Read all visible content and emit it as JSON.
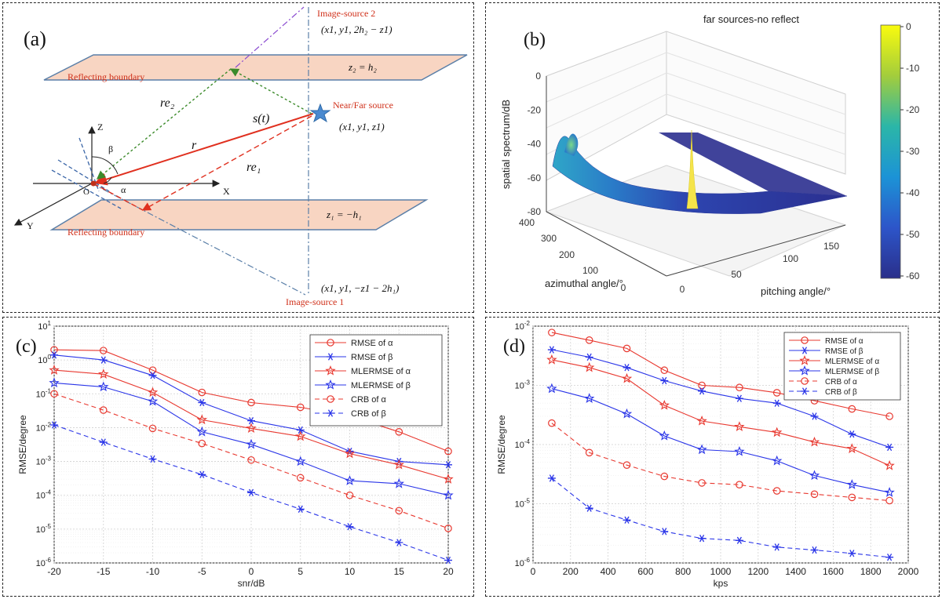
{
  "panel_a": {
    "label": "(a)",
    "image_source_2": "Image-source 2",
    "image_source_2_coords": "(x1, y1, 2h₂ − z1)",
    "image_source_1": "Image-source 1",
    "image_source_1_coords": "(x1, y1, −z1 − 2h₁)",
    "boundary_label": "Reflecting boundary",
    "z2_label": "z₂ = h₂",
    "z1_label": "z₁ = −h₁",
    "source_label": "Near/Far source",
    "source_coords": "(x1, y1, z1)",
    "signal_label": "s(t)",
    "re2_label": "re₂",
    "re1_label": "re₁",
    "r_label": "r",
    "beta_label": "β",
    "alpha_label": "α",
    "origin_label": "O",
    "axis_x": "X",
    "axis_y": "Y",
    "axis_z": "Z"
  },
  "panel_b": {
    "label": "(b)",
    "title": "far sources-no reflect",
    "zlabel": "spatial spectrum/dB",
    "xlabel": "azimuthal angle/°",
    "ylabel": "pitching angle/°",
    "zticks": [
      "0",
      "-20",
      "-40",
      "-60",
      "-80"
    ],
    "xticks": [
      "0",
      "100",
      "200",
      "300",
      "400"
    ],
    "yticks": [
      "0",
      "50",
      "100",
      "150"
    ],
    "colorbar_ticks": [
      "0",
      "-10",
      "-20",
      "-30",
      "-40",
      "-50",
      "-60"
    ],
    "colors": {
      "high": "#f9fb0e",
      "low": "#2a2f8a"
    }
  },
  "panel_c_label": "(c)",
  "panel_d_label": "(d)",
  "chart_data": [
    {
      "type": "line",
      "panel": "(c)",
      "xlabel": "snr/dB",
      "ylabel": "RMSE/degree",
      "yscale": "log",
      "xlim": [
        -20,
        20
      ],
      "ylim": [
        1e-06,
        10
      ],
      "x": [
        -20,
        -15,
        -10,
        -5,
        0,
        5,
        10,
        15,
        20
      ],
      "xticks": [
        "-20",
        "-15",
        "-10",
        "-5",
        "0",
        "5",
        "10",
        "15",
        "20"
      ],
      "grid": true,
      "legend_position": "top-right",
      "series": [
        {
          "name": "RMSE of α",
          "color": "#e8382f",
          "marker": "circle",
          "dash": false,
          "values": [
            2.0,
            1.9,
            0.5,
            0.11,
            0.055,
            0.04,
            0.022,
            0.0075,
            0.002
          ]
        },
        {
          "name": "RMSE of β",
          "color": "#2a35e8",
          "marker": "star6",
          "dash": false,
          "values": [
            1.4,
            1.0,
            0.35,
            0.055,
            0.016,
            0.0085,
            0.002,
            0.001,
            0.0008
          ]
        },
        {
          "name": "MLERMSE of α",
          "color": "#e8382f",
          "marker": "pentagram",
          "dash": false,
          "values": [
            0.5,
            0.38,
            0.11,
            0.017,
            0.0095,
            0.0055,
            0.0017,
            0.0008,
            0.0003
          ]
        },
        {
          "name": "MLERMSE of β",
          "color": "#2a35e8",
          "marker": "pentagram",
          "dash": false,
          "values": [
            0.21,
            0.16,
            0.06,
            0.0075,
            0.0032,
            0.001,
            0.00027,
            0.00022,
            0.0001
          ]
        },
        {
          "name": "CRB of α",
          "color": "#e8382f",
          "marker": "circle",
          "dash": true,
          "values": [
            0.1,
            0.033,
            0.0095,
            0.0034,
            0.0011,
            0.00033,
            0.0001,
            3.5e-05,
            1.05e-05
          ]
        },
        {
          "name": "CRB of β",
          "color": "#2a35e8",
          "marker": "star6",
          "dash": true,
          "values": [
            0.012,
            0.0037,
            0.00118,
            0.00041,
            0.00012,
            3.9e-05,
            1.18e-05,
            4e-06,
            1.2e-06
          ]
        }
      ]
    },
    {
      "type": "line",
      "panel": "(d)",
      "xlabel": "kps",
      "ylabel": "RMSE/degree",
      "yscale": "log",
      "xlim": [
        0,
        2000
      ],
      "ylim": [
        1e-06,
        0.01
      ],
      "x": [
        100,
        300,
        500,
        700,
        900,
        1100,
        1300,
        1500,
        1700,
        1900
      ],
      "xticks": [
        "0",
        "200",
        "400",
        "600",
        "800",
        "1000",
        "1200",
        "1400",
        "1600",
        "1800",
        "2000"
      ],
      "grid": true,
      "legend_position": "top-right",
      "series": [
        {
          "name": "RMSE of α",
          "color": "#e8382f",
          "marker": "circle",
          "dash": false,
          "values": [
            0.0078,
            0.0058,
            0.0042,
            0.0018,
            0.001,
            0.00092,
            0.00075,
            0.00055,
            0.0004,
            0.0003
          ]
        },
        {
          "name": "RMSE of β",
          "color": "#2a35e8",
          "marker": "star6",
          "dash": false,
          "values": [
            0.004,
            0.003,
            0.002,
            0.0012,
            0.0008,
            0.0006,
            0.0005,
            0.0003,
            0.00015,
            9e-05
          ]
        },
        {
          "name": "MLERMSE of α",
          "color": "#e8382f",
          "marker": "pentagram",
          "dash": false,
          "values": [
            0.0027,
            0.002,
            0.0013,
            0.00046,
            0.00025,
            0.0002,
            0.00016,
            0.00011,
            8.5e-05,
            4.4e-05
          ]
        },
        {
          "name": "MLERMSE of β",
          "color": "#2a35e8",
          "marker": "pentagram",
          "dash": false,
          "values": [
            0.00088,
            0.0006,
            0.00033,
            0.00014,
            8.2e-05,
            7.6e-05,
            5.3e-05,
            3e-05,
            2.1e-05,
            1.55e-05
          ]
        },
        {
          "name": "CRB of α",
          "color": "#e8382f",
          "marker": "circle",
          "dash": true,
          "values": [
            0.00023,
            7.3e-05,
            4.5e-05,
            2.9e-05,
            2.25e-05,
            2.1e-05,
            1.65e-05,
            1.45e-05,
            1.28e-05,
            1.13e-05
          ]
        },
        {
          "name": "CRB of β",
          "color": "#2a35e8",
          "marker": "star6",
          "dash": true,
          "values": [
            2.7e-05,
            8.4e-06,
            5.3e-06,
            3.4e-06,
            2.6e-06,
            2.4e-06,
            1.85e-06,
            1.65e-06,
            1.45e-06,
            1.25e-06
          ]
        }
      ]
    }
  ]
}
